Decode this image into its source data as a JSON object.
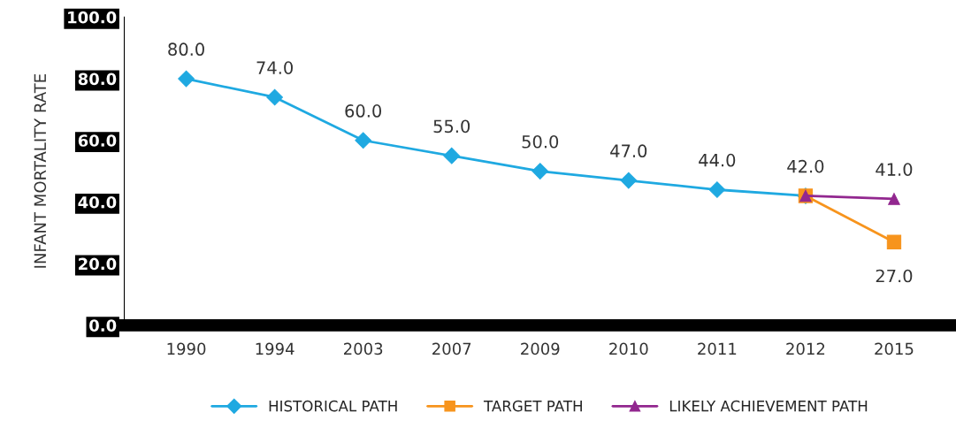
{
  "chart_data": {
    "type": "line",
    "ylabel": "INFANT MORTALITY RATE",
    "categories": [
      "1990",
      "1994",
      "2003",
      "2007",
      "2009",
      "2010",
      "2011",
      "2012",
      "2015"
    ],
    "series": [
      {
        "name": "HISTORICAL PATH",
        "color": "#1fa9e1",
        "marker": "diamond",
        "values": [
          80,
          74,
          60,
          55,
          50,
          47,
          44,
          42,
          null
        ],
        "value_labels": [
          "80.0",
          "74.0",
          "60.0",
          "55.0",
          "50.0",
          "47.0",
          "44.0",
          "42.0",
          null
        ]
      },
      {
        "name": "TARGET PATH",
        "color": "#f7941d",
        "marker": "square",
        "values": [
          null,
          null,
          null,
          null,
          null,
          null,
          null,
          42,
          27
        ],
        "value_labels": [
          null,
          null,
          null,
          null,
          null,
          null,
          null,
          null,
          "27.0"
        ]
      },
      {
        "name": "LIKELY ACHIEVEMENT PATH",
        "color": "#92278f",
        "marker": "triangle",
        "values": [
          null,
          null,
          null,
          null,
          null,
          null,
          null,
          42,
          41
        ],
        "value_labels": [
          null,
          null,
          null,
          null,
          null,
          null,
          null,
          null,
          "41.0"
        ]
      }
    ],
    "ylim": [
      0,
      100
    ],
    "yticks": [
      {
        "value": 0,
        "label": "0.0"
      },
      {
        "value": 20,
        "label": "20.0"
      },
      {
        "value": 40,
        "label": "40.0"
      },
      {
        "value": 60,
        "label": "60.0"
      },
      {
        "value": 80,
        "label": "80.0"
      },
      {
        "value": 100,
        "label": "100.0"
      }
    ],
    "grid": false,
    "legend": "bottom",
    "line_style": "solid"
  }
}
